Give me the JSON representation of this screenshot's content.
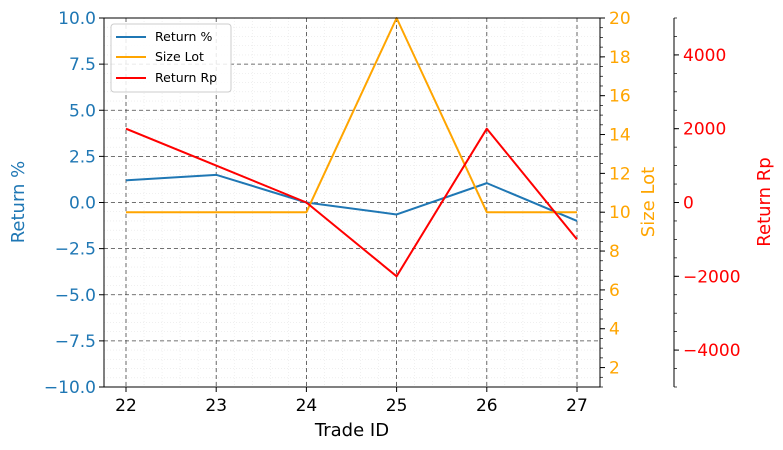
{
  "chart_data": {
    "type": "line",
    "xlabel": "Trade ID",
    "x": [
      "22",
      "23",
      "24",
      "25",
      "26",
      "27"
    ],
    "grid": true,
    "legend_position": "top-left",
    "axes": {
      "left": {
        "label": "Return %",
        "color": "#1f77b4",
        "ylim": [
          -10,
          10
        ],
        "ticks": [
          "−10.0",
          "−7.5",
          "−5.0",
          "−2.5",
          "0.0",
          "2.5",
          "5.0",
          "7.5",
          "10.0"
        ],
        "tick_values": [
          -10,
          -7.5,
          -5,
          -2.5,
          0,
          2.5,
          5,
          7.5,
          10
        ]
      },
      "right1": {
        "label": "Size Lot",
        "color": "#ffa500",
        "ylim": [
          1,
          20
        ],
        "ticks": [
          "2",
          "4",
          "6",
          "8",
          "10",
          "12",
          "14",
          "16",
          "18",
          "20"
        ],
        "tick_values": [
          2,
          4,
          6,
          8,
          10,
          12,
          14,
          16,
          18,
          20
        ]
      },
      "right2": {
        "label": "Return Rp",
        "color": "#ff0000",
        "ylim": [
          -5000,
          5000
        ],
        "ticks": [
          "−4000",
          "−2000",
          "0",
          "2000",
          "4000"
        ],
        "tick_values": [
          -4000,
          -2000,
          0,
          2000,
          4000
        ]
      }
    },
    "series": [
      {
        "name": "Return %",
        "axis": "left",
        "color": "#1f77b4",
        "values": [
          1.2,
          1.5,
          0.0,
          -0.65,
          1.05,
          -1.0
        ]
      },
      {
        "name": "Size Lot",
        "axis": "right1",
        "color": "#ffa500",
        "values": [
          10,
          10,
          10,
          20,
          10,
          10
        ]
      },
      {
        "name": "Return Rp",
        "axis": "right2",
        "color": "#ff0000",
        "values": [
          2000,
          1000,
          0,
          -2000,
          2000,
          -1000
        ]
      }
    ]
  }
}
